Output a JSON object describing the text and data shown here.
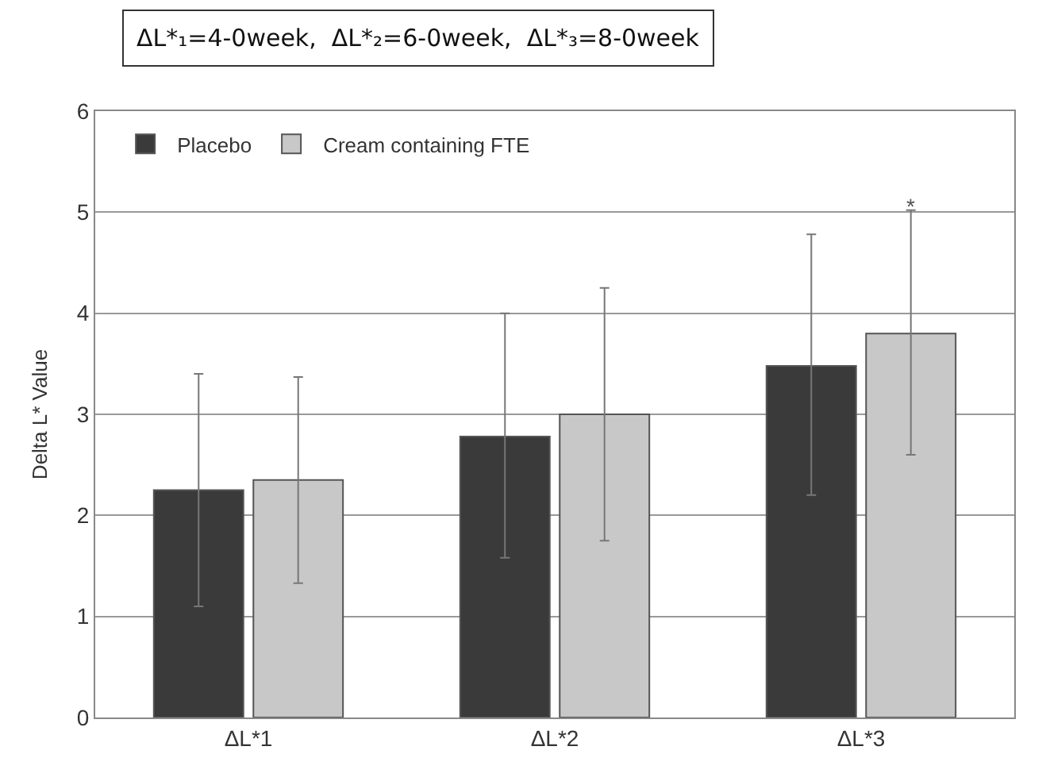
{
  "chart_data": {
    "type": "bar",
    "title": "ΔL*₁=4-0week,  ΔL*₂=6-0week,  ΔL*₃=8-0week",
    "ylabel": "Delta L* Value",
    "categories": [
      "ΔL*1",
      "ΔL*2",
      "ΔL*3"
    ],
    "series": [
      {
        "name": "Placebo",
        "color": "#3a3a3a",
        "values": [
          2.25,
          2.78,
          3.48
        ],
        "errors": [
          [
            1.1,
            3.4
          ],
          [
            1.58,
            4.0
          ],
          [
            2.2,
            4.78
          ]
        ]
      },
      {
        "name": "Cream containing FTE",
        "color": "#c8c8c8",
        "values": [
          2.35,
          3.0,
          3.8
        ],
        "errors": [
          [
            1.33,
            3.37
          ],
          [
            1.75,
            4.25
          ],
          [
            2.6,
            5.02
          ]
        ]
      }
    ],
    "annotations": [
      "*"
    ],
    "ylim": [
      0,
      6
    ],
    "yticks": [
      0,
      1,
      2,
      3,
      4,
      5,
      6
    ],
    "grid": "y",
    "legend": "top left"
  }
}
